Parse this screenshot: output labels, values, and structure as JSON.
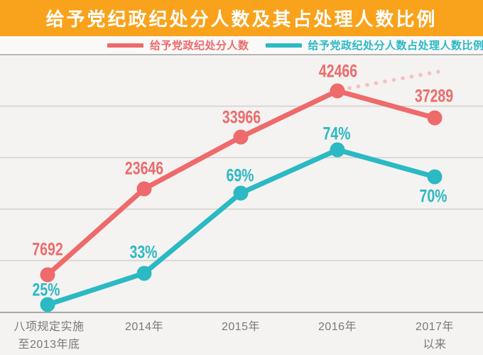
{
  "header": {
    "title": "给予党纪政纪处分人数及其占处理人数比例",
    "background_color": "#f9a21b"
  },
  "legend": {
    "items": [
      {
        "label": "给予党政纪处分人数",
        "color": "#ee6a6b"
      },
      {
        "label": "给予党政纪处分人数占处理人数比例",
        "color": "#2bb9c3"
      }
    ]
  },
  "chart_data": {
    "type": "line",
    "title": "给予党纪政纪处分人数及其占处理人数比例",
    "categories": [
      "八项规定实施\n至2013年底",
      "2014年",
      "2015年",
      "2016年",
      "2017年以来"
    ],
    "series": [
      {
        "name": "给予党政纪处分人数",
        "color": "#ee6a6b",
        "values": [
          7692,
          23646,
          33966,
          42466,
          37289
        ],
        "labels": [
          "7692",
          "23646",
          "33966",
          "42466",
          "37289"
        ]
      },
      {
        "name": "给予党政纪处分人数占处理人数比例",
        "color": "#2bb9c3",
        "unit": "%",
        "values": [
          25,
          33,
          69,
          74,
          70
        ],
        "labels": [
          "25%",
          "33%",
          "69%",
          "74%",
          "70%"
        ]
      }
    ],
    "annotations": [
      {
        "type": "dotted_projection",
        "series": "给予党政纪处分人数",
        "from_value": 42466,
        "direction": "up-right"
      }
    ],
    "grid": "horizontal",
    "x_axis": "bottom",
    "y_axis_ticks": "none",
    "legend_position": "top",
    "colors": {
      "grid": "#d2d1cf",
      "grid_top": "#b8b7b5",
      "axis": "#a8a7a5",
      "projection_dots": "#f6c0bf"
    }
  }
}
